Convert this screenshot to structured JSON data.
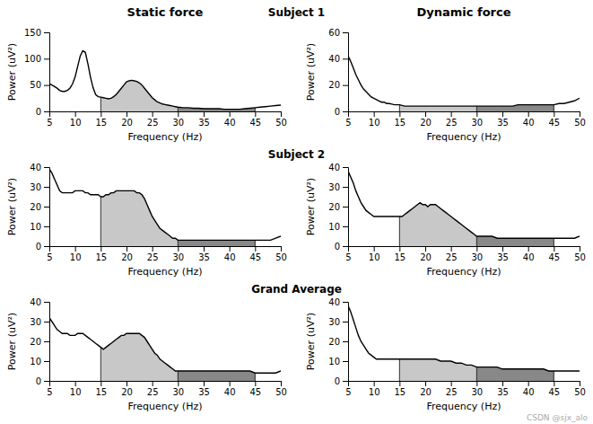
{
  "chart_data": {
    "type": "line",
    "column_titles": [
      "Static force",
      "Dynamic force"
    ],
    "row_titles": [
      "Subject 1",
      "Subject 2",
      "Grand Average"
    ],
    "x_label": "Frequency (Hz)",
    "y_label": "Power (uV²)",
    "xlim": [
      5,
      50
    ],
    "xticks": [
      5,
      10,
      15,
      20,
      25,
      30,
      35,
      40,
      45,
      50
    ],
    "bands": [
      {
        "from": 15,
        "to": 30,
        "color": "#c8c8c8"
      },
      {
        "from": 30,
        "to": 45,
        "color": "#888888"
      }
    ],
    "annotations": [
      {
        "text": "CSDN @sjx_alo"
      }
    ],
    "panels": [
      {
        "ylim": [
          0,
          150
        ],
        "yticks": [
          0,
          50,
          100,
          150
        ],
        "series": [
          {
            "color": "#000000",
            "x": [
              5,
              5.5,
              6,
              6.5,
              7,
              7.5,
              8,
              8.5,
              9,
              9.5,
              10,
              10.5,
              11,
              11.5,
              12,
              12.5,
              13,
              13.5,
              14,
              14.5,
              15,
              15.5,
              16,
              16.5,
              17,
              17.5,
              18,
              18.5,
              19,
              19.5,
              20,
              20.5,
              21,
              21.5,
              22,
              22.5,
              23,
              23.5,
              24,
              24.5,
              25,
              25.5,
              26,
              26.5,
              27,
              27.5,
              28,
              28.5,
              29,
              29.5,
              30,
              31,
              32,
              33,
              34,
              35,
              36,
              37,
              38,
              39,
              40,
              41,
              42,
              43,
              44,
              45,
              46,
              47,
              48,
              49,
              50
            ],
            "values": [
              52,
              50,
              47,
              44,
              40,
              38,
              38,
              40,
              44,
              52,
              65,
              85,
              105,
              115,
              112,
              90,
              65,
              45,
              32,
              28,
              27,
              26,
              25,
              24,
              25,
              28,
              32,
              38,
              44,
              50,
              56,
              58,
              59,
              58,
              57,
              54,
              50,
              44,
              38,
              32,
              26,
              22,
              18,
              16,
              14,
              13,
              12,
              11,
              10,
              9,
              8,
              7,
              7,
              6,
              6,
              5,
              5,
              5,
              5,
              4,
              4,
              4,
              4,
              5,
              6,
              7,
              8,
              9,
              10,
              11,
              12
            ]
          }
        ]
      },
      {
        "ylim": [
          0,
          60
        ],
        "yticks": [
          0,
          20,
          40,
          60
        ],
        "series": [
          {
            "color": "#000000",
            "x": [
              5,
              5.5,
              6,
              6.5,
              7,
              7.5,
              8,
              8.5,
              9,
              9.5,
              10,
              10.5,
              11,
              11.5,
              12,
              12.5,
              13,
              13.5,
              14,
              14.5,
              15,
              15.5,
              16,
              16.5,
              17,
              17.5,
              18,
              18.5,
              19,
              19.5,
              20,
              21,
              22,
              23,
              24,
              25,
              26,
              27,
              28,
              29,
              30,
              31,
              32,
              33,
              34,
              35,
              36,
              37,
              38,
              39,
              40,
              41,
              42,
              43,
              44,
              45,
              46,
              47,
              48,
              49,
              50
            ],
            "values": [
              42,
              38,
              33,
              28,
              24,
              20,
              17,
              15,
              13,
              11,
              10,
              9,
              8,
              7,
              7,
              6,
              6,
              5.5,
              5,
              5,
              5,
              4.5,
              4,
              4,
              4,
              4,
              4,
              4,
              4,
              4,
              4,
              4,
              4,
              4,
              4,
              4,
              4,
              4,
              4,
              4,
              4,
              4,
              4,
              4,
              4,
              4,
              4,
              4,
              5,
              5,
              5,
              5,
              5,
              5,
              5,
              5,
              6,
              6,
              7,
              8,
              10
            ]
          }
        ]
      },
      {
        "ylim": [
          0,
          40
        ],
        "yticks": [
          0,
          10,
          20,
          30,
          40
        ],
        "series": [
          {
            "color": "#000000",
            "x": [
              5,
              5.5,
              6,
              6.5,
              7,
              7.5,
              8,
              8.5,
              9,
              9.5,
              10,
              10.5,
              11,
              11.5,
              12,
              12.5,
              13,
              13.5,
              14,
              14.5,
              15,
              15.5,
              16,
              16.5,
              17,
              17.5,
              18,
              18.5,
              19,
              19.5,
              20,
              20.5,
              21,
              21.5,
              22,
              22.5,
              23,
              23.5,
              24,
              24.5,
              25,
              25.5,
              26,
              26.5,
              27,
              27.5,
              28,
              28.5,
              29,
              29.5,
              30,
              31,
              32,
              33,
              34,
              35,
              36,
              37,
              38,
              39,
              40,
              41,
              42,
              43,
              44,
              45,
              46,
              47,
              48,
              49,
              50
            ],
            "values": [
              39,
              37,
              34,
              31,
              28,
              27,
              27,
              27,
              27,
              27,
              28,
              28,
              28,
              28,
              27,
              27,
              26,
              26,
              26,
              26,
              25,
              25,
              26,
              26,
              27,
              27,
              28,
              28,
              28,
              28,
              28,
              28,
              28,
              28,
              27,
              27,
              26,
              24,
              21,
              18,
              15,
              13,
              11,
              9,
              8,
              7,
              6,
              5,
              4,
              4,
              3,
              3,
              3,
              3,
              3,
              3,
              3,
              3,
              3,
              3,
              3,
              3,
              3,
              3,
              3,
              3,
              3,
              3,
              3,
              4,
              5
            ]
          }
        ]
      },
      {
        "ylim": [
          0,
          40
        ],
        "yticks": [
          0,
          10,
          20,
          30,
          40
        ],
        "series": [
          {
            "color": "#000000",
            "x": [
              5,
              5.5,
              6,
              6.5,
              7,
              7.5,
              8,
              8.5,
              9,
              9.5,
              10,
              10.5,
              11,
              11.5,
              12,
              12.5,
              13,
              13.5,
              14,
              14.5,
              15,
              15.5,
              16,
              16.5,
              17,
              17.5,
              18,
              18.5,
              19,
              19.5,
              20,
              20.5,
              21,
              21.5,
              22,
              22.5,
              23,
              23.5,
              24,
              24.5,
              25,
              25.5,
              26,
              26.5,
              27,
              27.5,
              28,
              28.5,
              29,
              29.5,
              30,
              31,
              32,
              33,
              34,
              35,
              36,
              37,
              38,
              39,
              40,
              41,
              42,
              43,
              44,
              45,
              46,
              47,
              48,
              49,
              50
            ],
            "values": [
              38,
              35,
              32,
              28,
              25,
              22,
              20,
              18,
              17,
              16,
              15,
              15,
              15,
              15,
              15,
              15,
              15,
              15,
              15,
              15,
              15,
              15,
              16,
              17,
              18,
              19,
              20,
              21,
              22,
              21,
              21,
              20,
              21,
              21,
              21,
              20,
              19,
              18,
              17,
              16,
              15,
              14,
              13,
              12,
              11,
              10,
              9,
              8,
              7,
              6,
              5,
              5,
              5,
              5,
              4,
              4,
              4,
              4,
              4,
              4,
              4,
              4,
              4,
              4,
              4,
              4,
              4,
              4,
              4,
              4,
              5
            ]
          }
        ]
      },
      {
        "ylim": [
          0,
          40
        ],
        "yticks": [
          0,
          10,
          20,
          30,
          40
        ],
        "series": [
          {
            "color": "#000000",
            "x": [
              5,
              5.5,
              6,
              6.5,
              7,
              7.5,
              8,
              8.5,
              9,
              9.5,
              10,
              10.5,
              11,
              11.5,
              12,
              12.5,
              13,
              13.5,
              14,
              14.5,
              15,
              15.5,
              16,
              16.5,
              17,
              17.5,
              18,
              18.5,
              19,
              19.5,
              20,
              20.5,
              21,
              21.5,
              22,
              22.5,
              23,
              23.5,
              24,
              24.5,
              25,
              25.5,
              26,
              26.5,
              27,
              27.5,
              28,
              28.5,
              29,
              29.5,
              30,
              31,
              32,
              33,
              34,
              35,
              36,
              37,
              38,
              39,
              40,
              41,
              42,
              43,
              44,
              45,
              46,
              47,
              48,
              49,
              50
            ],
            "values": [
              32,
              30,
              28,
              26,
              25,
              24,
              24,
              24,
              23,
              23,
              23,
              24,
              24,
              24,
              23,
              22,
              21,
              20,
              19,
              18,
              17,
              16,
              17,
              18,
              19,
              20,
              21,
              22,
              23,
              23,
              24,
              24,
              24,
              24,
              24,
              24,
              23,
              22,
              20,
              18,
              16,
              14,
              13,
              11,
              10,
              9,
              8,
              7,
              6,
              5,
              5,
              5,
              5,
              5,
              5,
              5,
              5,
              5,
              5,
              5,
              5,
              5,
              5,
              5,
              5,
              4,
              4,
              4,
              4,
              4,
              5
            ]
          }
        ]
      },
      {
        "ylim": [
          0,
          40
        ],
        "yticks": [
          0,
          10,
          20,
          30,
          40
        ],
        "series": [
          {
            "color": "#000000",
            "x": [
              5,
              5.5,
              6,
              6.5,
              7,
              7.5,
              8,
              8.5,
              9,
              9.5,
              10,
              10.5,
              11,
              11.5,
              12,
              12.5,
              13,
              13.5,
              14,
              14.5,
              15,
              15.5,
              16,
              16.5,
              17,
              17.5,
              18,
              18.5,
              19,
              19.5,
              20,
              21,
              22,
              23,
              24,
              25,
              26,
              27,
              28,
              29,
              30,
              31,
              32,
              33,
              34,
              35,
              36,
              37,
              38,
              39,
              40,
              41,
              42,
              43,
              44,
              45,
              46,
              47,
              48,
              49,
              50
            ],
            "values": [
              38,
              35,
              31,
              27,
              23,
              20,
              18,
              16,
              14,
              13,
              12,
              11,
              11,
              11,
              11,
              11,
              11,
              11,
              11,
              11,
              11,
              11,
              11,
              11,
              11,
              11,
              11,
              11,
              11,
              11,
              11,
              11,
              11,
              10,
              10,
              10,
              9,
              9,
              8,
              8,
              7,
              7,
              7,
              7,
              7,
              6,
              6,
              6,
              6,
              6,
              6,
              6,
              6,
              6,
              5,
              5,
              5,
              5,
              5,
              5,
              5
            ]
          }
        ]
      }
    ]
  }
}
